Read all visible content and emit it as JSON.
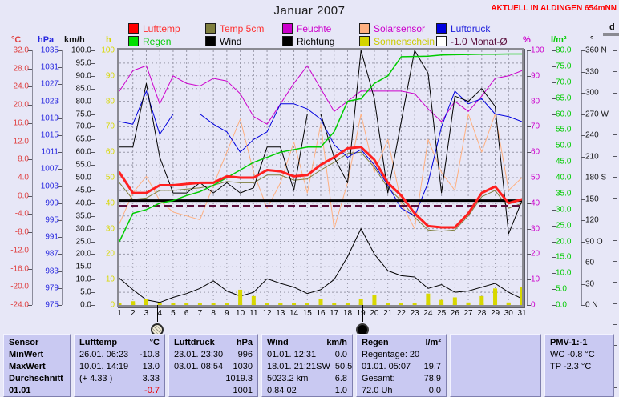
{
  "header": {
    "title": "Januar 2007",
    "station": "AKTUELL IN ALDINGEN 654mNN"
  },
  "colors": {
    "page_background": "#e7e7f7",
    "panel_background": "#c9c9f2",
    "grid": "#9898a8",
    "lufttemp": "#ff2020",
    "temp5cm": "#7f7f3f",
    "feuchte": "#cc00cc",
    "solarsensor": "#ffb080",
    "luftdruck": "#0000dd",
    "regen": "#00cc00",
    "wind": "#000000",
    "richtung": "#000000",
    "sonnenschein": "#d8d800",
    "monat_avg": "#5a0f3c",
    "station_note": "#ff0000"
  },
  "legend": {
    "items": [
      {
        "label": "Lufttemp",
        "box": "#ff0000",
        "text": "#ff3030",
        "row": 0,
        "col": 0
      },
      {
        "label": "Temp 5cm",
        "box": "#7f7f3f",
        "text": "#ff3030",
        "row": 0,
        "col": 1
      },
      {
        "label": "Feuchte",
        "box": "#cc00cc",
        "text": "#cc00cc",
        "row": 0,
        "col": 2
      },
      {
        "label": "Solarsensor",
        "box": "#ffb080",
        "text": "#cc00cc",
        "row": 0,
        "col": 3
      },
      {
        "label": "Luftdruck",
        "box": "#0000e0",
        "text": "#2020dd",
        "row": 0,
        "col": 4
      },
      {
        "label": "Regen",
        "box": "#00e000",
        "text": "#00cc00",
        "row": 1,
        "col": 0
      },
      {
        "label": "Wind",
        "box": "#000000",
        "text": "#000000",
        "row": 1,
        "col": 1
      },
      {
        "label": "Richtung",
        "box": "#000000",
        "text": "#000000",
        "row": 1,
        "col": 2
      },
      {
        "label": "Sonnenschein",
        "box": "#d4d400",
        "text": "#cccc00",
        "row": 1,
        "col": 3
      },
      {
        "label": "-1.0 Monat-Ø",
        "box": "#ffffff",
        "text": "#5a0f3c",
        "row": 1,
        "col": 4
      }
    ]
  },
  "axes": [
    {
      "id": "celsius",
      "label": "°C",
      "color": "#e04040",
      "side": "left",
      "ticks": [
        "32.0",
        "28.0",
        "24.0",
        "20.0",
        "16.0",
        "12.0",
        "8.0",
        "4.0",
        "0.0",
        "-4.0",
        "-8.0",
        "-12.0",
        "-16.0",
        "-20.0",
        "-24.0"
      ]
    },
    {
      "id": "hpa",
      "label": "hPa",
      "color": "#2828e0",
      "side": "left",
      "ticks": [
        "1035",
        "1031",
        "1027",
        "1023",
        "1019",
        "1015",
        "1011",
        "1007",
        "1003",
        "999",
        "995",
        "991",
        "987",
        "983",
        "979",
        "975"
      ]
    },
    {
      "id": "kmh",
      "label": "km/h",
      "color": "#101010",
      "side": "left",
      "ticks": [
        "100.0",
        "95.0",
        "90.0",
        "85.0",
        "80.0",
        "75.0",
        "70.0",
        "65.0",
        "60.0",
        "55.0",
        "50.0",
        "45.0",
        "40.0",
        "35.0",
        "30.0",
        "25.0",
        "20.0",
        "15.0",
        "10.0",
        "5.0",
        "0.0"
      ]
    },
    {
      "id": "hours",
      "label": "h",
      "color": "#d8d800",
      "side": "left",
      "ticks": [
        "100",
        "90",
        "80",
        "70",
        "60",
        "50",
        "40",
        "30",
        "20",
        "10",
        "0"
      ]
    },
    {
      "id": "percent",
      "label": "%",
      "color": "#cc00cc",
      "side": "right",
      "ticks": [
        "100",
        "90",
        "80",
        "70",
        "60",
        "50",
        "40",
        "30",
        "20",
        "10",
        "0"
      ]
    },
    {
      "id": "lm2",
      "label": "l/m²",
      "color": "#00cc00",
      "side": "right",
      "ticks": [
        "80.0",
        "75.0",
        "70.0",
        "65.0",
        "60.0",
        "55.0",
        "50.0",
        "45.0",
        "40.0",
        "35.0",
        "30.0",
        "25.0",
        "20.0",
        "15.0",
        "10.0",
        "5.0",
        "0.0"
      ]
    },
    {
      "id": "degrees",
      "label": "°",
      "color": "#101010",
      "side": "right",
      "ticks": [
        "360 N",
        "330",
        "300",
        "270 W",
        "240",
        "210",
        "180 S",
        "150",
        "120",
        "90 O",
        "60",
        "30",
        "0 N"
      ]
    },
    {
      "id": "d-axis",
      "label": "d",
      "color": "#101010",
      "side": "right",
      "ticks": []
    }
  ],
  "x_axis": {
    "day_labels": [
      "1",
      "2",
      "3",
      "4",
      "5",
      "6",
      "7",
      "8",
      "9",
      "10",
      "11",
      "12",
      "13",
      "14",
      "15",
      "16",
      "17",
      "18",
      "19",
      "20",
      "21",
      "22",
      "23",
      "24",
      "25",
      "26",
      "27",
      "28",
      "29",
      "30",
      "31"
    ]
  },
  "moon_markers": [
    {
      "day": 3.8,
      "phase": "full-moon"
    },
    {
      "day": 19.1,
      "phase": "new-moon"
    }
  ],
  "chart_data": {
    "type": "line",
    "title": "Januar 2007",
    "x": [
      1,
      2,
      3,
      4,
      5,
      6,
      7,
      8,
      9,
      10,
      11,
      12,
      13,
      14,
      15,
      16,
      17,
      18,
      19,
      20,
      21,
      22,
      23,
      24,
      25,
      26,
      27,
      28,
      29,
      30,
      31
    ],
    "grid_range": [
      0,
      100
    ],
    "legend_position": "top",
    "grid": true,
    "series": [
      {
        "name": "Feuchte",
        "axis": "%",
        "axis_min": 0,
        "axis_max": 100,
        "color": "#cc00cc",
        "width": 1,
        "values": [
          84,
          92,
          94,
          79,
          90,
          87,
          86,
          89,
          88,
          83,
          74,
          71,
          79,
          87,
          94,
          85,
          76,
          80,
          84,
          84,
          84,
          84,
          83,
          77,
          72,
          80,
          76,
          82,
          89,
          90,
          92
        ]
      },
      {
        "name": "Luftdruck",
        "axis": "hPa",
        "axis_min": 975,
        "axis_max": 1035,
        "color": "#0000dd",
        "width": 1,
        "values": [
          72,
          71,
          84,
          67,
          75,
          75,
          75,
          71,
          68,
          60,
          65,
          68,
          79,
          79,
          77,
          73,
          63,
          58,
          61,
          55,
          47,
          38,
          35,
          48,
          70,
          84,
          79,
          81,
          75,
          74,
          72
        ]
      },
      {
        "name": "Richtung",
        "axis": "°",
        "axis_min": 0,
        "axis_max": 360,
        "color": "#000000",
        "width": 1,
        "values": [
          62,
          62,
          87,
          58,
          44,
          44,
          48,
          44,
          48,
          44,
          46,
          62,
          62,
          45,
          75,
          75,
          58,
          48,
          100,
          81,
          44,
          72,
          100,
          91,
          44,
          82,
          80,
          85,
          78,
          28,
          41
        ]
      },
      {
        "name": "Solarsensor",
        "axis": "%",
        "axis_min": 0,
        "axis_max": 100,
        "color": "#ffb080",
        "width": 1,
        "values": [
          32,
          44,
          50.5,
          41,
          36.5,
          35,
          33.5,
          47,
          60,
          73,
          52,
          38,
          48,
          64,
          44,
          71,
          30,
          48,
          75,
          52,
          65,
          40,
          30,
          65,
          52,
          45,
          75,
          60,
          75,
          45,
          50
        ]
      },
      {
        "name": "Temp 5cm",
        "axis": "°C",
        "axis_min": -24,
        "axis_max": 32,
        "color": "#7f7f3f",
        "width": 1,
        "values": [
          48,
          41.5,
          42,
          45,
          45,
          45.5,
          46,
          47,
          48.5,
          48,
          48,
          51,
          51,
          49,
          49.5,
          53,
          56,
          59.5,
          60,
          54,
          46,
          41,
          34.5,
          29.5,
          29,
          29.5,
          35,
          42.5,
          45,
          38,
          40
        ]
      },
      {
        "name": "Wind",
        "axis": "km/h",
        "axis_min": 0,
        "axis_max": 100,
        "color": "#000000",
        "width": 1,
        "values": [
          10.5,
          6,
          2,
          1,
          3,
          4.5,
          6.5,
          9.5,
          5.5,
          3.5,
          5,
          10.3,
          8.5,
          7,
          4.5,
          6,
          10,
          19,
          30,
          20,
          13.5,
          11.5,
          11,
          6.5,
          8,
          5,
          5.5,
          7,
          8.5,
          5,
          2.5
        ]
      },
      {
        "name": "Regen",
        "axis": "l/m²",
        "axis_min": 0,
        "axis_max": 80,
        "color": "#00cc00",
        "width": 1.5,
        "values": [
          25,
          36,
          37.5,
          40,
          41,
          43,
          44.5,
          47,
          50,
          53,
          56,
          58,
          60,
          61,
          62,
          62,
          68,
          80,
          81,
          87,
          90,
          97.5,
          97.6,
          97.7,
          98.2,
          98.3,
          98.4,
          98.5,
          98.5,
          98.6,
          98.6
        ]
      },
      {
        "name": "Lufttemp",
        "axis": "°C",
        "axis_min": -24,
        "axis_max": 32,
        "color": "#ff2020",
        "width": 3,
        "values": [
          52,
          44,
          44,
          47,
          47,
          47.5,
          48,
          48,
          50.5,
          50,
          50,
          53,
          52.5,
          50.5,
          51,
          55,
          58,
          61.5,
          62,
          57,
          48,
          43,
          36,
          31,
          30.5,
          30.5,
          36,
          44,
          46.5,
          40,
          41.5
        ]
      }
    ],
    "bars": {
      "name": "Sonnenschein",
      "axis": "h",
      "color": "#d8d800",
      "values": [
        0,
        1.5,
        2.5,
        0,
        0,
        0,
        0,
        0,
        0,
        6,
        3.5,
        0,
        0.8,
        0,
        0.5,
        2.5,
        0,
        0.4,
        2.5,
        4,
        0,
        0.5,
        0,
        4.5,
        2,
        3,
        1,
        3.5,
        6.5,
        1,
        7
      ]
    },
    "reference_lines": [
      {
        "name": "monthly-reference",
        "grid_value": 41,
        "color": "#000000",
        "width": 3,
        "dash": ""
      },
      {
        "name": "-1.0 Monat-Ø",
        "grid_value": 39,
        "color": "#5a0f3c",
        "width": 2,
        "dash": "9,5"
      }
    ]
  },
  "table": {
    "columns": [
      {
        "id": "sensor",
        "header": {
          "left": "Sensor",
          "right": ""
        },
        "bold_rows": true,
        "rows": [
          {
            "left": "MinWert",
            "right": ""
          },
          {
            "left": "MaxWert",
            "right": ""
          },
          {
            "left": "Durchschnitt",
            "right": ""
          },
          {
            "left": "01.01",
            "right": ""
          }
        ]
      },
      {
        "id": "lufttemp",
        "header": {
          "left": "Lufttemp",
          "right": "°C"
        },
        "rows": [
          {
            "left": "26.01.  06:23",
            "right": "-10.8"
          },
          {
            "left": "10.01.  14:19",
            "right": "13.0"
          },
          {
            "left": "(+ 4.33 )",
            "right": "3.33"
          },
          {
            "left": "",
            "right": "-0.7",
            "right_color": "#ee0000"
          }
        ]
      },
      {
        "id": "luftdruck",
        "header": {
          "left": "Luftdruck",
          "right": "hPa"
        },
        "rows": [
          {
            "left": "23.01.  23:30",
            "right": "996"
          },
          {
            "left": "03.01.  08:54",
            "right": "1030"
          },
          {
            "left": "",
            "right": "1019.3"
          },
          {
            "left": "",
            "right": "1001"
          }
        ]
      },
      {
        "id": "wind",
        "header": {
          "left": "Wind",
          "right": "km/h"
        },
        "rows": [
          {
            "left": "01.01.  12:31",
            "right": "0.0"
          },
          {
            "left": "18.01.  21:21SW",
            "right": "50.5"
          },
          {
            "left": "5023.2 km",
            "right": "6.8"
          },
          {
            "left": "0.84 02",
            "right": "1.0"
          }
        ]
      },
      {
        "id": "regen",
        "header": {
          "left": "Regen",
          "right": "l/m²"
        },
        "rows": [
          {
            "left": "Regentage: 20",
            "right": ""
          },
          {
            "left": "01.01.  05:07",
            "right": "19.7"
          },
          {
            "left": "Gesamt:",
            "right": "78.9"
          },
          {
            "left": "72.0 Uh",
            "right": "0.0"
          }
        ]
      },
      {
        "id": "spacer",
        "header": {
          "left": "",
          "right": ""
        },
        "rows": [
          {
            "left": "",
            "right": ""
          },
          {
            "left": "",
            "right": ""
          },
          {
            "left": "",
            "right": ""
          },
          {
            "left": "",
            "right": ""
          }
        ]
      },
      {
        "id": "pmv",
        "header": {
          "left": "PMV-1:-1",
          "right": ""
        },
        "rows": [
          {
            "left": "WC -0.8 °C",
            "right": ""
          },
          {
            "left": "TP -2.3 °C",
            "right": ""
          },
          {
            "left": "",
            "right": ""
          },
          {
            "left": "",
            "right": ""
          }
        ]
      }
    ]
  }
}
